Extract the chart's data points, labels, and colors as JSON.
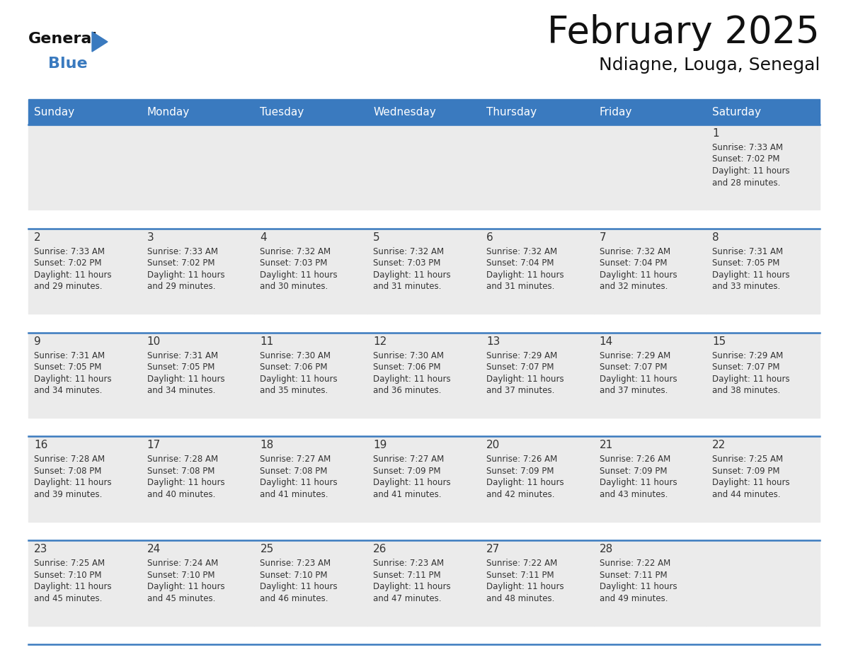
{
  "title": "February 2025",
  "subtitle": "Ndiagne, Louga, Senegal",
  "header_bg_color": "#3a7abf",
  "header_text_color": "#ffffff",
  "day_names": [
    "Sunday",
    "Monday",
    "Tuesday",
    "Wednesday",
    "Thursday",
    "Friday",
    "Saturday"
  ],
  "bg_color": "#ffffff",
  "cell_bg_color": "#ebebeb",
  "day_num_color": "#333333",
  "text_color": "#333333",
  "line_color": "#3a7abf",
  "logo_general_color": "#111111",
  "logo_blue_color": "#3a7abf",
  "logo_triangle_color": "#3a7abf",
  "calendar_data": [
    [
      null,
      null,
      null,
      null,
      null,
      null,
      {
        "day": 1,
        "sunrise": "7:33 AM",
        "sunset": "7:02 PM",
        "daylight": "11 hours and 28 minutes"
      }
    ],
    [
      {
        "day": 2,
        "sunrise": "7:33 AM",
        "sunset": "7:02 PM",
        "daylight": "11 hours and 29 minutes"
      },
      {
        "day": 3,
        "sunrise": "7:33 AM",
        "sunset": "7:02 PM",
        "daylight": "11 hours and 29 minutes"
      },
      {
        "day": 4,
        "sunrise": "7:32 AM",
        "sunset": "7:03 PM",
        "daylight": "11 hours and 30 minutes"
      },
      {
        "day": 5,
        "sunrise": "7:32 AM",
        "sunset": "7:03 PM",
        "daylight": "11 hours and 31 minutes"
      },
      {
        "day": 6,
        "sunrise": "7:32 AM",
        "sunset": "7:04 PM",
        "daylight": "11 hours and 31 minutes"
      },
      {
        "day": 7,
        "sunrise": "7:32 AM",
        "sunset": "7:04 PM",
        "daylight": "11 hours and 32 minutes"
      },
      {
        "day": 8,
        "sunrise": "7:31 AM",
        "sunset": "7:05 PM",
        "daylight": "11 hours and 33 minutes"
      }
    ],
    [
      {
        "day": 9,
        "sunrise": "7:31 AM",
        "sunset": "7:05 PM",
        "daylight": "11 hours and 34 minutes"
      },
      {
        "day": 10,
        "sunrise": "7:31 AM",
        "sunset": "7:05 PM",
        "daylight": "11 hours and 34 minutes"
      },
      {
        "day": 11,
        "sunrise": "7:30 AM",
        "sunset": "7:06 PM",
        "daylight": "11 hours and 35 minutes"
      },
      {
        "day": 12,
        "sunrise": "7:30 AM",
        "sunset": "7:06 PM",
        "daylight": "11 hours and 36 minutes"
      },
      {
        "day": 13,
        "sunrise": "7:29 AM",
        "sunset": "7:07 PM",
        "daylight": "11 hours and 37 minutes"
      },
      {
        "day": 14,
        "sunrise": "7:29 AM",
        "sunset": "7:07 PM",
        "daylight": "11 hours and 37 minutes"
      },
      {
        "day": 15,
        "sunrise": "7:29 AM",
        "sunset": "7:07 PM",
        "daylight": "11 hours and 38 minutes"
      }
    ],
    [
      {
        "day": 16,
        "sunrise": "7:28 AM",
        "sunset": "7:08 PM",
        "daylight": "11 hours and 39 minutes"
      },
      {
        "day": 17,
        "sunrise": "7:28 AM",
        "sunset": "7:08 PM",
        "daylight": "11 hours and 40 minutes"
      },
      {
        "day": 18,
        "sunrise": "7:27 AM",
        "sunset": "7:08 PM",
        "daylight": "11 hours and 41 minutes"
      },
      {
        "day": 19,
        "sunrise": "7:27 AM",
        "sunset": "7:09 PM",
        "daylight": "11 hours and 41 minutes"
      },
      {
        "day": 20,
        "sunrise": "7:26 AM",
        "sunset": "7:09 PM",
        "daylight": "11 hours and 42 minutes"
      },
      {
        "day": 21,
        "sunrise": "7:26 AM",
        "sunset": "7:09 PM",
        "daylight": "11 hours and 43 minutes"
      },
      {
        "day": 22,
        "sunrise": "7:25 AM",
        "sunset": "7:09 PM",
        "daylight": "11 hours and 44 minutes"
      }
    ],
    [
      {
        "day": 23,
        "sunrise": "7:25 AM",
        "sunset": "7:10 PM",
        "daylight": "11 hours and 45 minutes"
      },
      {
        "day": 24,
        "sunrise": "7:24 AM",
        "sunset": "7:10 PM",
        "daylight": "11 hours and 45 minutes"
      },
      {
        "day": 25,
        "sunrise": "7:23 AM",
        "sunset": "7:10 PM",
        "daylight": "11 hours and 46 minutes"
      },
      {
        "day": 26,
        "sunrise": "7:23 AM",
        "sunset": "7:11 PM",
        "daylight": "11 hours and 47 minutes"
      },
      {
        "day": 27,
        "sunrise": "7:22 AM",
        "sunset": "7:11 PM",
        "daylight": "11 hours and 48 minutes"
      },
      {
        "day": 28,
        "sunrise": "7:22 AM",
        "sunset": "7:11 PM",
        "daylight": "11 hours and 49 minutes"
      },
      null
    ]
  ]
}
